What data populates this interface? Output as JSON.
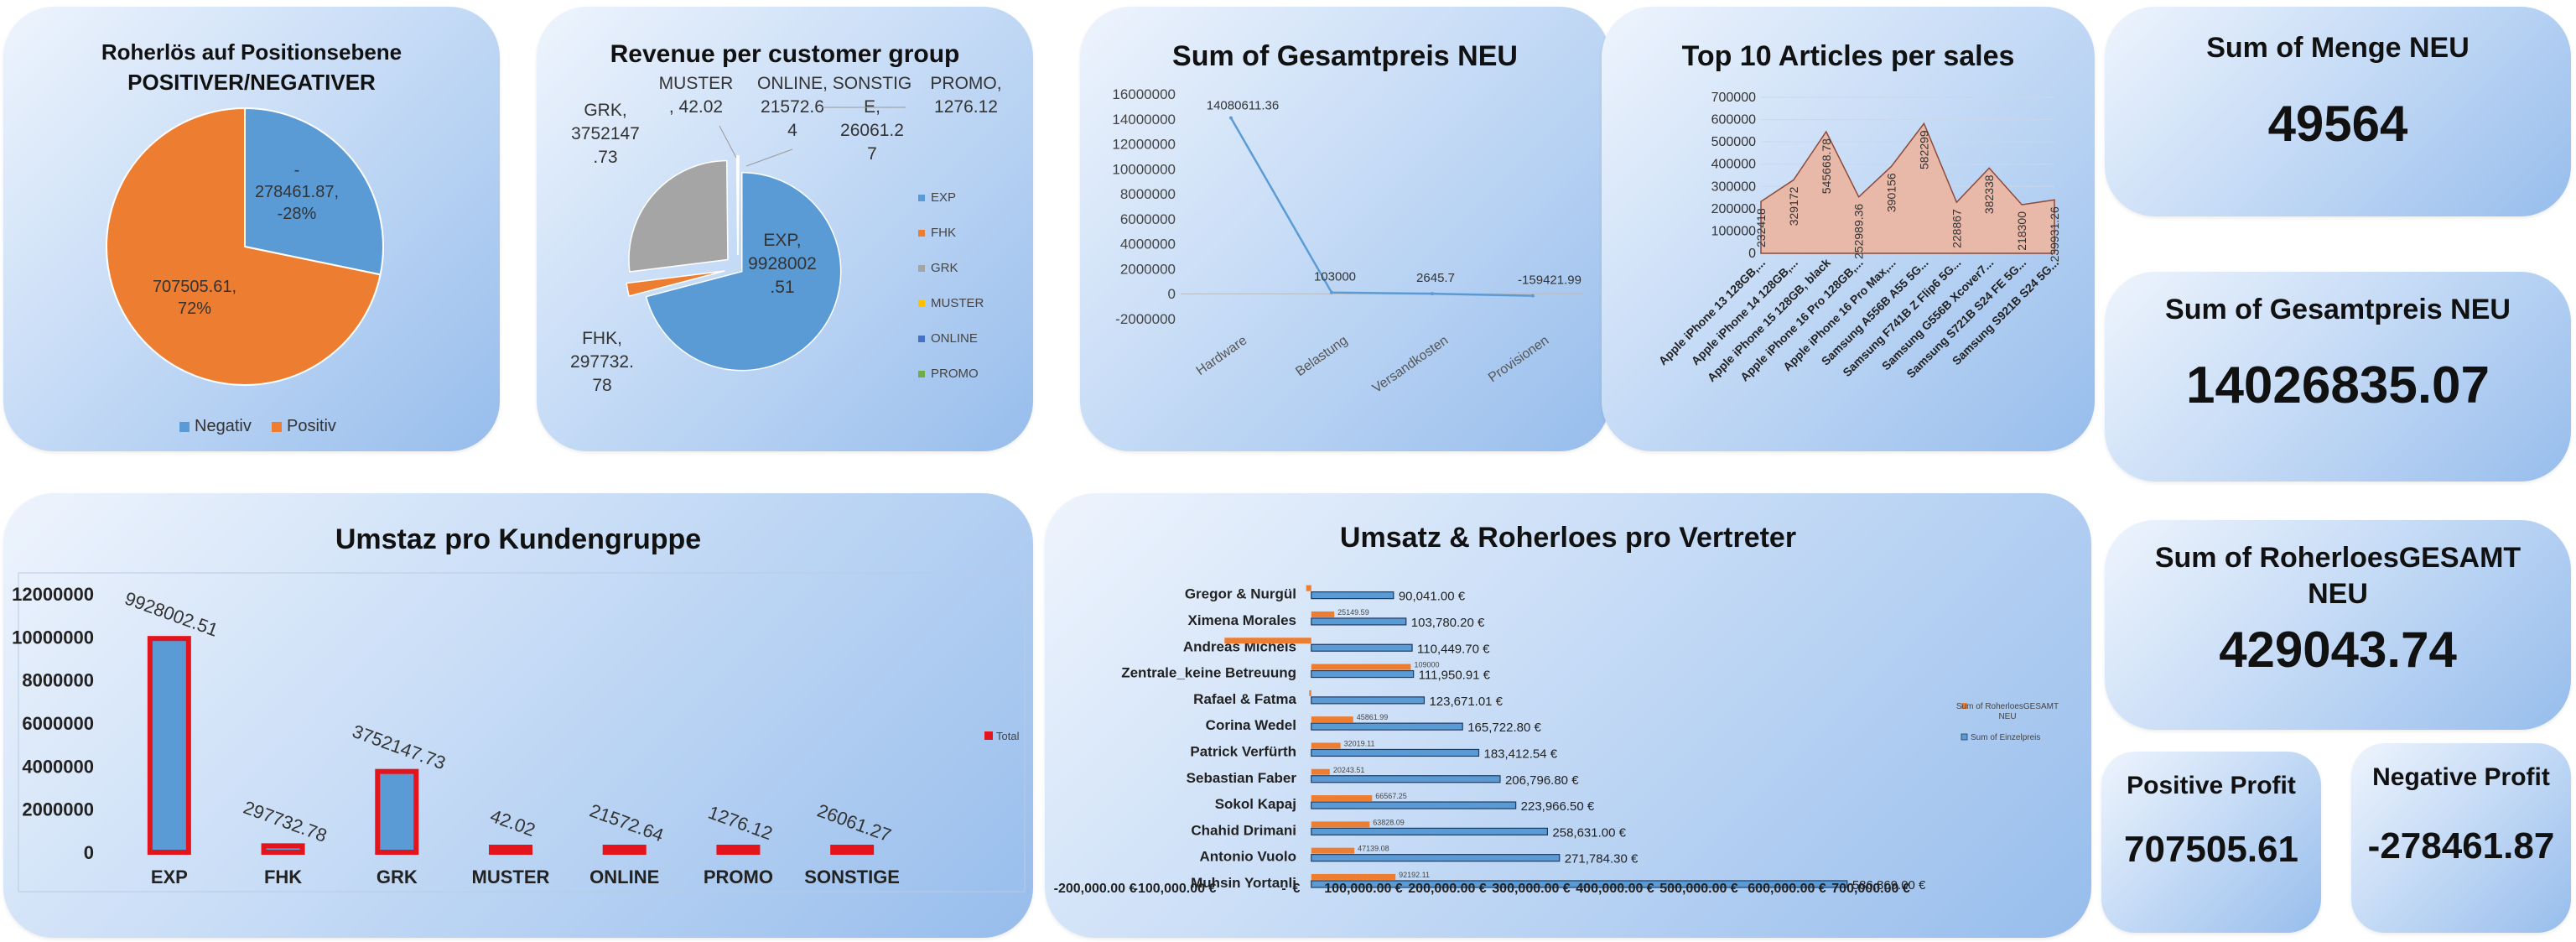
{
  "chart_data": [
    {
      "id": "c1",
      "type": "pie",
      "title": "Roherlös auf Positionsebene POSITIVER/NEGATIVER",
      "title_lines": [
        "Roherlös auf Positionsebene",
        "POSITIVER/NEGATIVER"
      ],
      "labels": [
        "Negativ",
        "Positiv"
      ],
      "values": [
        -278461.87,
        707505.61
      ],
      "value_labels": [
        [
          "-",
          "278461.87,",
          "-28%"
        ],
        [
          "707505.61,",
          "72%"
        ]
      ],
      "colors": [
        "#5b9bd5",
        "#ed7d31"
      ],
      "legend": "bottom"
    },
    {
      "id": "c2",
      "type": "pie",
      "title": "Revenue per customer group",
      "labels": [
        "EXP",
        "FHK",
        "GRK",
        "MUSTER",
        "ONLINE",
        "PROMO"
      ],
      "values": [
        9928002.51,
        297732.78,
        3752147.73,
        42.02,
        21572.64,
        1276.12
      ],
      "extra_labels": [
        "SONSTIGE"
      ],
      "value_labels": {
        "EXP": [
          "EXP,",
          "9928002",
          ".51"
        ],
        "FHK": [
          "FHK,",
          "297732.",
          "78"
        ],
        "GRK": [
          "GRK,",
          "3752147",
          ".73"
        ],
        "MUSTER": [
          "MUSTER",
          ", 42.02"
        ],
        "ONLINE": [
          "ONLINE,",
          "21572.6",
          "4"
        ],
        "SONSTIGE": [
          "SONSTIG",
          "E,",
          "26061.2",
          "7"
        ],
        "PROMO": [
          "PROMO,",
          "1276.12"
        ]
      },
      "colors": [
        "#5b9bd5",
        "#ed7d31",
        "#a5a5a5",
        "#ffc000",
        "#4472c4",
        "#70ad47"
      ],
      "legend": "right"
    },
    {
      "id": "c3",
      "type": "line",
      "title": "Sum of Gesamtpreis NEU",
      "categories": [
        "Hardware",
        "Belastung",
        "Versandkosten",
        "Provisionen"
      ],
      "values": [
        14080611.36,
        103000,
        2645.7,
        -159421.99
      ],
      "value_labels": [
        "14080611.36",
        "103000",
        "2645.7",
        "-159421.99"
      ],
      "ylim": [
        -2000000,
        16000000
      ],
      "yticks": [
        "16000000",
        "14000000",
        "12000000",
        "10000000",
        "8000000",
        "6000000",
        "4000000",
        "2000000",
        "0",
        "-2000000"
      ],
      "color": "#5b9bd5"
    },
    {
      "id": "c4",
      "type": "area",
      "title": "Top 10 Articles per sales",
      "categories": [
        "Apple iPhone 13 128GB,...",
        "Apple iPhone 14 128GB,...",
        "Apple iPhone 15 128GB, black",
        "Apple iPhone 16 Pro 128GB,...",
        "Apple iPhone 16 Pro Max,...",
        "Samsung A556B A55 5G...",
        "Samsung F741B Z Flip6 5G...",
        "Samsung G556B Xcover7...",
        "Samsung S721B S24 FE 5G...",
        "Samsung S921B S24 5G..."
      ],
      "values": [
        232418,
        329172,
        545668.78,
        252989.36,
        390156,
        582299,
        228867,
        382338,
        218300,
        239931.26
      ],
      "value_labels": [
        "232418",
        "329172",
        "545668.78",
        "252989.36",
        "390156",
        "582299",
        "228867",
        "382338",
        "218300",
        "239931.26"
      ],
      "ylim": [
        0,
        700000
      ],
      "yticks": [
        "700000",
        "600000",
        "500000",
        "400000",
        "300000",
        "200000",
        "100000",
        "0"
      ],
      "color": "#e8b8a8"
    },
    {
      "id": "c5",
      "type": "bar",
      "title": "Umstaz pro Kundengruppe",
      "categories": [
        "EXP",
        "FHK",
        "GRK",
        "MUSTER",
        "ONLINE",
        "PROMO",
        "SONSTIGE"
      ],
      "values": [
        9928002.51,
        297732.78,
        3752147.73,
        42.02,
        21572.64,
        1276.12,
        26061.27
      ],
      "value_labels": [
        "9928002.51",
        "297732.78",
        "3752147.73",
        "42.02",
        "21572.64",
        "1276.12",
        "26061.27"
      ],
      "ylim": [
        0,
        12000000
      ],
      "yticks": [
        "12000000",
        "10000000",
        "8000000",
        "6000000",
        "4000000",
        "2000000",
        "0"
      ],
      "legend_label": "Total",
      "colors": {
        "fill": "#5b9bd5",
        "border": "#e3141b"
      }
    },
    {
      "id": "c6",
      "type": "bar",
      "orientation": "horizontal",
      "title": "Umsatz & Roherloes pro Vertreter",
      "categories": [
        "Gregor & Nurgül",
        "Ximena Morales",
        "Andreas Michels",
        "Zentrale_keine Betreuung",
        "Rafael & Fatma",
        "Corina Wedel",
        "Patrick Verfürth",
        "Sebastian Faber",
        "Sokol Kapaj",
        "Chahid Drimani",
        "Antonio Vuolo",
        "Muhsin Yortanli"
      ],
      "series": [
        {
          "name": "Sum of RoherloesGESAMT NEU",
          "values": [
            -5600,
            25149.59,
            -95000,
            109000,
            -2300,
            45861.99,
            32019.11,
            20243.51,
            66567.25,
            63828.09,
            47139.08,
            92192.11
          ],
          "value_labels": [
            "",
            "25149.59",
            "",
            "109000",
            "",
            "45861.99",
            "32019.11",
            "20243.51",
            "66567.25",
            "63828.09",
            "47139.08",
            "92192.11"
          ],
          "color": "#ed7d31"
        },
        {
          "name": "Sum of Einzelpreis",
          "values": [
            90041,
            103780.2,
            110449.7,
            111950.91,
            123671.01,
            165722.8,
            183412.54,
            206796.8,
            223966.5,
            258631,
            271784.3,
            586869
          ],
          "value_labels": [
            "90,041.00 €",
            "103,780.20 €",
            "110,449.70 €",
            "111,950.91 €",
            "123,671.01 €",
            "165,722.80 €",
            "183,412.54 €",
            "206,796.80 €",
            "223,966.50 €",
            "258,631.00 €",
            "271,784.30 €",
            "586,869.00 €"
          ],
          "color": "#5b9bd5"
        }
      ],
      "legend_labels": [
        [
          "Sum of RoherloesGESAMT",
          "NEU"
        ],
        [
          "Sum of Einzelpreis"
        ]
      ],
      "xticks": [
        "-200,000.00 €",
        "-100,000.00 €",
        "-",
        "€",
        "100,000.00 €",
        "200,000.00 €",
        "300,000.00 €",
        "400,000.00 €",
        "500,000.00 €",
        "600,000.00 €",
        "700,000.00 €"
      ],
      "xlim": [
        -200000,
        700000
      ]
    }
  ],
  "kpis": {
    "menge": {
      "title": "Sum of Menge NEU",
      "value": "49564"
    },
    "gesamtpreis": {
      "title": "Sum of Gesamtpreis NEU",
      "value": "14026835.07"
    },
    "roherloes": {
      "title_lines": [
        "Sum of RoherloesGESAMT",
        "NEU"
      ],
      "value": "429043.74"
    },
    "positive": {
      "title": "Positive Profit",
      "value": "707505.61"
    },
    "negative": {
      "title": "Negative Profit",
      "value": "-278461.87"
    }
  }
}
